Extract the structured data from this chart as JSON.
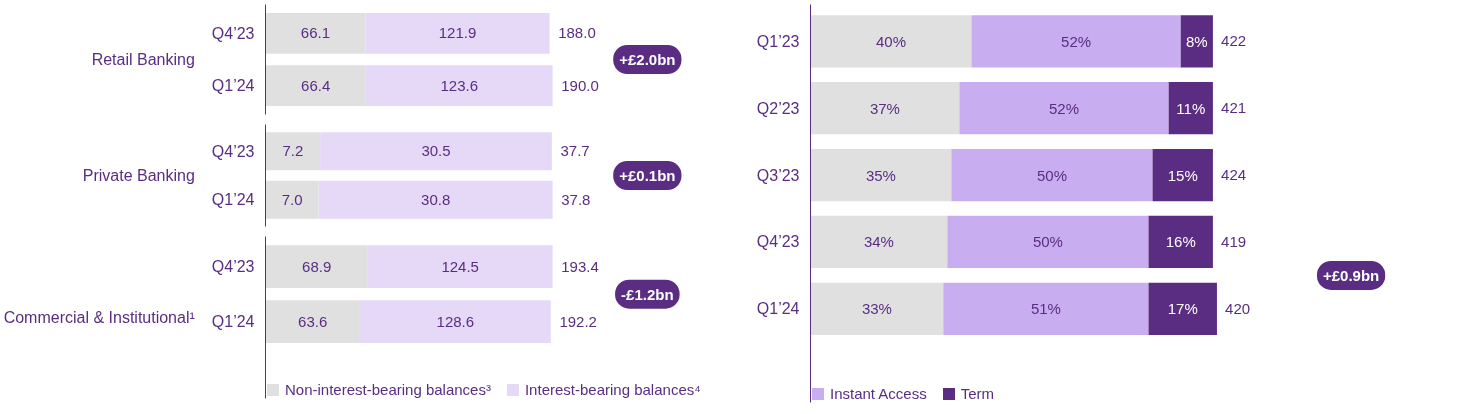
{
  "chart_data": [
    {
      "type": "bar",
      "orientation": "horizontal",
      "stacked": true,
      "ylabel": "Retail Banking",
      "categories": [
        "Q4’23",
        "Q1’24"
      ],
      "tick_labels": "y",
      "grid": false,
      "legend": false,
      "series": [
        {
          "color": "#e0e0e0",
          "values": [
            66.1,
            66.4
          ],
          "value_labels": [
            "66.1",
            "66.4"
          ]
        },
        {
          "color": "#e6d8f7",
          "values": [
            121.9,
            123.6
          ],
          "value_labels": [
            "121.9",
            "123.6"
          ]
        }
      ],
      "totals": [
        "188.0",
        "190.0"
      ],
      "annotations": [
        "+£2.0bn"
      ]
    },
    {
      "type": "bar",
      "orientation": "horizontal",
      "stacked": true,
      "ylabel": "Private Banking",
      "categories": [
        "Q4’23",
        "Q1’24"
      ],
      "tick_labels": "y",
      "grid": false,
      "legend": false,
      "series": [
        {
          "color": "#e0e0e0",
          "values": [
            7.2,
            7.0
          ],
          "value_labels": [
            "7.2",
            "7.0"
          ]
        },
        {
          "color": "#e6d8f7",
          "values": [
            30.5,
            30.8
          ],
          "value_labels": [
            "30.5",
            "30.8"
          ]
        }
      ],
      "totals": [
        "37.7",
        "37.8"
      ],
      "annotations": [
        "+£0.1bn"
      ]
    },
    {
      "type": "bar",
      "orientation": "horizontal",
      "stacked": true,
      "ylabel": "Commercial & Institutional¹",
      "categories": [
        "Q4’23",
        "Q1’24"
      ],
      "tick_labels": "y",
      "grid": false,
      "legend": "bottom",
      "series": [
        {
          "name": "Non-interest-bearing balances³",
          "color": "#e0e0e0",
          "values": [
            68.9,
            63.6
          ],
          "value_labels": [
            "68.9",
            "63.6"
          ]
        },
        {
          "name": "Interest-bearing balances⁴",
          "color": "#e6d8f7",
          "values": [
            124.5,
            128.6
          ],
          "value_labels": [
            "124.5",
            "128.6"
          ]
        }
      ],
      "totals": [
        "193.4",
        "192.2"
      ],
      "annotations": [
        "-£1.2bn"
      ]
    },
    {
      "type": "bar",
      "orientation": "horizontal",
      "stacked": true,
      "categories": [
        "Q1’23",
        "Q2’23",
        "Q3’23",
        "Q4’23",
        "Q1’24"
      ],
      "tick_labels": "y",
      "grid": false,
      "legend": "bottom",
      "series": [
        {
          "color": "#e0e0e0",
          "values": [
            40,
            37,
            35,
            34,
            33
          ],
          "value_labels": [
            "40%",
            "37%",
            "35%",
            "34%",
            "33%"
          ]
        },
        {
          "name": "Instant Access",
          "color": "#c8aef0",
          "values": [
            52,
            52,
            50,
            50,
            51
          ],
          "value_labels": [
            "52%",
            "52%",
            "50%",
            "50%",
            "51%"
          ]
        },
        {
          "name": "Term",
          "color": "#5a2d82",
          "values": [
            8,
            11,
            15,
            16,
            17
          ],
          "value_labels": [
            "8%",
            "11%",
            "15%",
            "16%",
            "17%"
          ]
        }
      ],
      "annotations": [
        "422",
        "421",
        "424",
        "419",
        "420",
        "+£0.9bn"
      ]
    }
  ]
}
